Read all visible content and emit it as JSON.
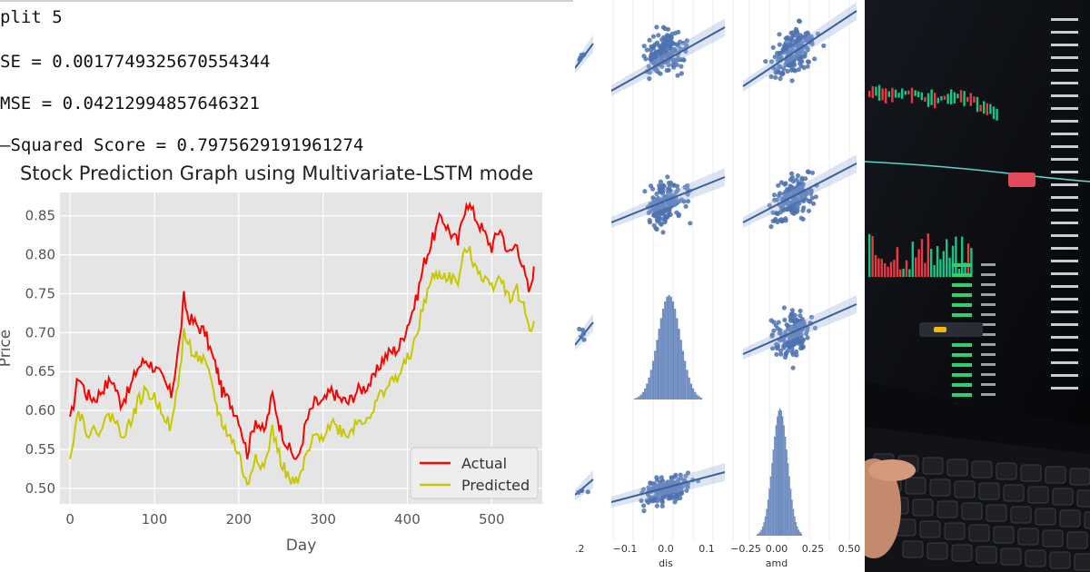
{
  "metrics": {
    "split": "plit 5",
    "mse": "SE = 0.0017749325670554344",
    "rmse": "MSE = 0.04212994857646321",
    "r2": "–Squared Score = 0.7975629191961274"
  },
  "chart_data": [
    {
      "type": "line",
      "title": "Stock Prediction Graph using Multivariate-LSTM mode",
      "xlabel": "Day",
      "ylabel": "Price",
      "xlim": [
        -12,
        560
      ],
      "ylim": [
        0.48,
        0.88
      ],
      "xticks": [
        "0",
        "100",
        "200",
        "300",
        "400",
        "500"
      ],
      "yticks": [
        "0.50",
        "0.55",
        "0.60",
        "0.65",
        "0.70",
        "0.75",
        "0.80",
        "0.85"
      ],
      "grid": true,
      "legend": "bottom-right",
      "series": [
        {
          "name": "Actual",
          "color": "#ff0000",
          "x": [
            0,
            10,
            20,
            30,
            40,
            50,
            60,
            70,
            80,
            90,
            100,
            110,
            120,
            130,
            135,
            140,
            150,
            160,
            170,
            175,
            180,
            190,
            200,
            210,
            220,
            230,
            240,
            250,
            260,
            270,
            280,
            290,
            300,
            310,
            320,
            330,
            340,
            350,
            360,
            370,
            380,
            390,
            400,
            410,
            420,
            430,
            440,
            450,
            460,
            470,
            480,
            490,
            500,
            510,
            520,
            530,
            540,
            545,
            550
          ],
          "values": [
            0.585,
            0.645,
            0.62,
            0.615,
            0.63,
            0.64,
            0.61,
            0.625,
            0.655,
            0.665,
            0.655,
            0.64,
            0.62,
            0.69,
            0.745,
            0.72,
            0.71,
            0.7,
            0.665,
            0.65,
            0.625,
            0.61,
            0.59,
            0.545,
            0.59,
            0.57,
            0.62,
            0.575,
            0.55,
            0.535,
            0.585,
            0.61,
            0.61,
            0.625,
            0.615,
            0.61,
            0.625,
            0.63,
            0.64,
            0.665,
            0.675,
            0.68,
            0.71,
            0.74,
            0.79,
            0.82,
            0.85,
            0.83,
            0.815,
            0.87,
            0.85,
            0.83,
            0.81,
            0.835,
            0.8,
            0.815,
            0.77,
            0.75,
            0.785
          ]
        },
        {
          "name": "Predicted",
          "color": "#c8c800",
          "x": [
            0,
            10,
            20,
            30,
            40,
            50,
            60,
            70,
            80,
            90,
            100,
            110,
            120,
            130,
            135,
            140,
            150,
            160,
            170,
            175,
            180,
            190,
            200,
            210,
            220,
            230,
            240,
            250,
            260,
            270,
            280,
            290,
            300,
            310,
            320,
            330,
            340,
            350,
            360,
            370,
            380,
            390,
            400,
            410,
            420,
            430,
            440,
            450,
            460,
            470,
            480,
            490,
            500,
            510,
            520,
            530,
            540,
            545,
            550
          ],
          "values": [
            0.545,
            0.6,
            0.575,
            0.57,
            0.585,
            0.595,
            0.57,
            0.58,
            0.61,
            0.625,
            0.615,
            0.6,
            0.575,
            0.65,
            0.7,
            0.685,
            0.67,
            0.66,
            0.625,
            0.6,
            0.585,
            0.565,
            0.545,
            0.5,
            0.545,
            0.525,
            0.575,
            0.535,
            0.51,
            0.505,
            0.54,
            0.565,
            0.57,
            0.585,
            0.575,
            0.57,
            0.585,
            0.59,
            0.6,
            0.625,
            0.635,
            0.645,
            0.665,
            0.69,
            0.74,
            0.77,
            0.775,
            0.77,
            0.765,
            0.81,
            0.79,
            0.77,
            0.76,
            0.775,
            0.745,
            0.755,
            0.725,
            0.705,
            0.715
          ]
        }
      ]
    },
    {
      "type": "scatter",
      "xlabel_center": "dis",
      "xlabel_right": "amd",
      "xticks_center": [
        "−0.1",
        "0.0",
        "0.1"
      ],
      "xticks_right": [
        "−0.25",
        "0.00",
        "0.25",
        "0.50"
      ],
      "xtick_leftcut": ".2",
      "point_color": "#4c72b0"
    }
  ]
}
